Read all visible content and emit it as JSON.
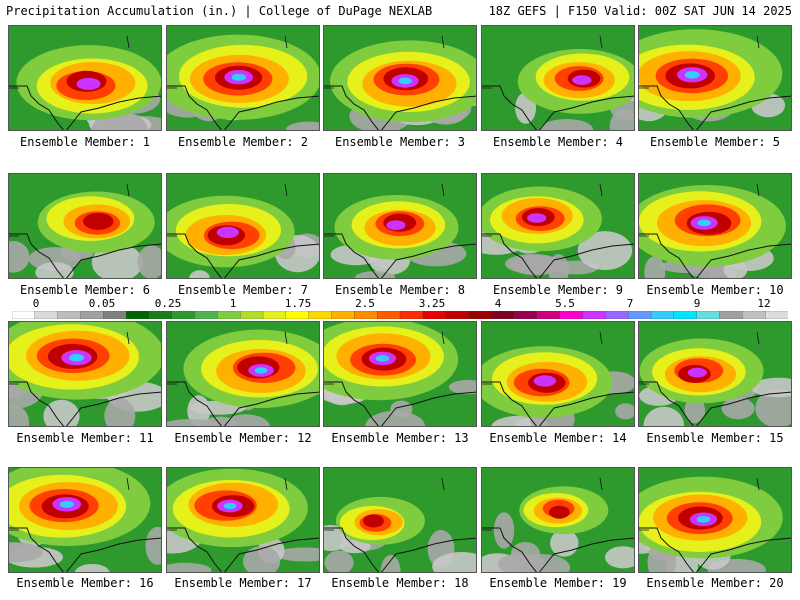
{
  "header": {
    "left_title": "Precipitation Accumulation (in.) | College of DuPage NEXLAB",
    "right_title": "18Z GEFS | F150 Valid: 00Z SAT JUN 14 2025"
  },
  "colorbar": {
    "labels": [
      "0",
      "0.05",
      "0.25",
      "1",
      "1.75",
      "2.5",
      "3.25",
      "4",
      "5.5",
      "7",
      "9",
      "12"
    ],
    "colors": [
      "#ffffff",
      "#d9d9d9",
      "#bdbdbd",
      "#a0a0a0",
      "#808080",
      "#006400",
      "#1a7d1a",
      "#2e9a2e",
      "#4db34d",
      "#7fcc3f",
      "#b2dd2b",
      "#e6f01a",
      "#ffff00",
      "#ffd700",
      "#ffb000",
      "#ff8c00",
      "#ff5a00",
      "#ff2a00",
      "#e60000",
      "#c00000",
      "#990000",
      "#800020",
      "#99004d",
      "#cc0080",
      "#ff00cc",
      "#cc33ff",
      "#9966ff",
      "#6699ff",
      "#33ccff",
      "#00e5ff",
      "#66dddd",
      "#a0a0a0",
      "#c0c0c0",
      "#dddddd"
    ]
  },
  "panels": [
    {
      "caption": "Ensemble Member: 1",
      "intensity": 0.75
    },
    {
      "caption": "Ensemble Member: 2",
      "intensity": 0.9
    },
    {
      "caption": "Ensemble Member: 3",
      "intensity": 0.85
    },
    {
      "caption": "Ensemble Member: 4",
      "intensity": 0.6
    },
    {
      "caption": "Ensemble Member: 5",
      "intensity": 0.95
    },
    {
      "caption": "Ensemble Member: 6",
      "intensity": 0.55
    },
    {
      "caption": "Ensemble Member: 7",
      "intensity": 0.7
    },
    {
      "caption": "Ensemble Member: 8",
      "intensity": 0.6
    },
    {
      "caption": "Ensemble Member: 9",
      "intensity": 0.6
    },
    {
      "caption": "Ensemble Member: 10",
      "intensity": 0.85
    },
    {
      "caption": "Ensemble Member: 11",
      "intensity": 0.95
    },
    {
      "caption": "Ensemble Member: 12",
      "intensity": 0.8
    },
    {
      "caption": "Ensemble Member: 13",
      "intensity": 0.85
    },
    {
      "caption": "Ensemble Member: 14",
      "intensity": 0.7
    },
    {
      "caption": "Ensemble Member: 15",
      "intensity": 0.6
    },
    {
      "caption": "Ensemble Member: 16",
      "intensity": 0.9
    },
    {
      "caption": "Ensemble Member: 17",
      "intensity": 0.8
    },
    {
      "caption": "Ensemble Member: 18",
      "intensity": 0.35
    },
    {
      "caption": "Ensemble Member: 19",
      "intensity": 0.35
    },
    {
      "caption": "Ensemble Member: 20",
      "intensity": 0.85
    }
  ]
}
